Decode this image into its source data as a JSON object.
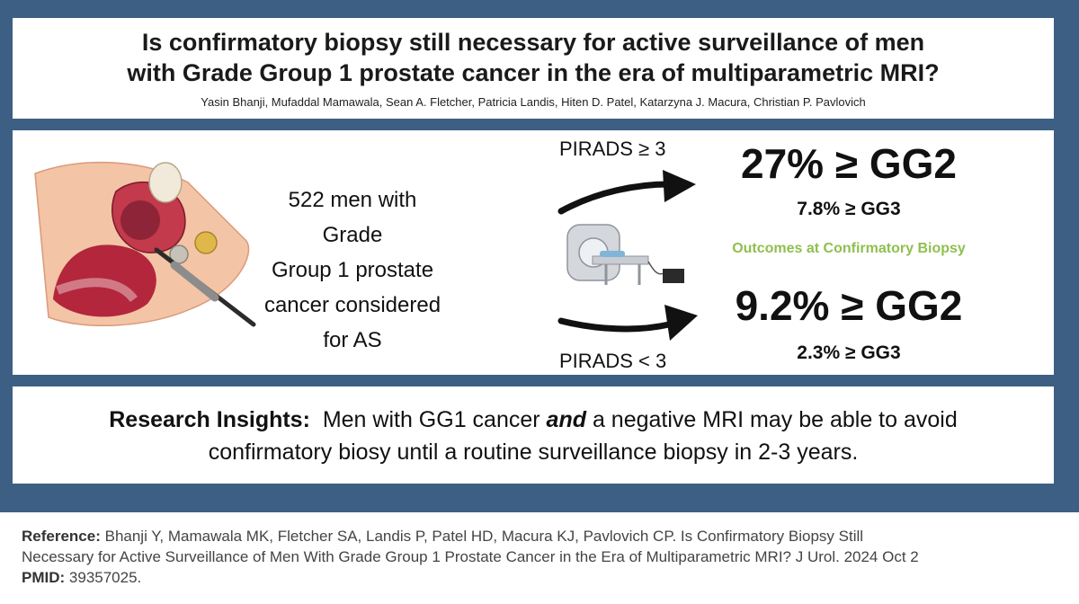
{
  "header": {
    "title_line1": "Is confirmatory biopsy still necessary for active surveillance of men",
    "title_line2": "with Grade Group 1 prostate cancer in the era of multiparametric MRI?",
    "authors": "Yasin Bhanji, Mufaddal Mamawala, Sean A. Fletcher, Patricia Landis, Hiten D. Patel, Katarzyna J. Macura, Christian P. Pavlovich"
  },
  "cohort": {
    "line1": "522 men with Grade",
    "line2": "Group 1 prostate",
    "line3": "cancer considered",
    "line4": "for AS"
  },
  "outcomes": {
    "label": "Outcomes at Confirmatory Biopsy",
    "high": {
      "group": "PIRADS ≥ 3",
      "gg2": "27% ≥ GG2",
      "gg3": "7.8% ≥ GG3"
    },
    "low": {
      "group": "PIRADS < 3",
      "gg2": "9.2% ≥ GG2",
      "gg3": "2.3% ≥ GG3"
    }
  },
  "insight": {
    "label": "Research Insights:",
    "text_before": "Men with GG1 cancer",
    "emphasis": "and",
    "text_after": "a negative MRI may be able to avoid",
    "line2": "confirmatory biosy until a routine surveillance biopsy in 2-3 years."
  },
  "reference": {
    "label": "Reference:",
    "line1": "Bhanji Y, Mamawala MK, Fletcher SA, Landis P, Patel HD, Macura KJ, Pavlovich CP. Is Confirmatory Biopsy Still",
    "line2": "Necessary for Active Surveillance of Men With Grade Group 1 Prostate Cancer in the Era of Multiparametric MRI? J Urol. 2024 Oct 2",
    "pmid_label": "PMID:",
    "pmid": "39357025."
  },
  "colors": {
    "frame": "#3d5f83",
    "outcomes_label": "#8fbf4f"
  },
  "icons": [
    "anatomy-illustration-icon",
    "mri-scanner-icon",
    "arrow-up-icon",
    "arrow-down-icon"
  ]
}
